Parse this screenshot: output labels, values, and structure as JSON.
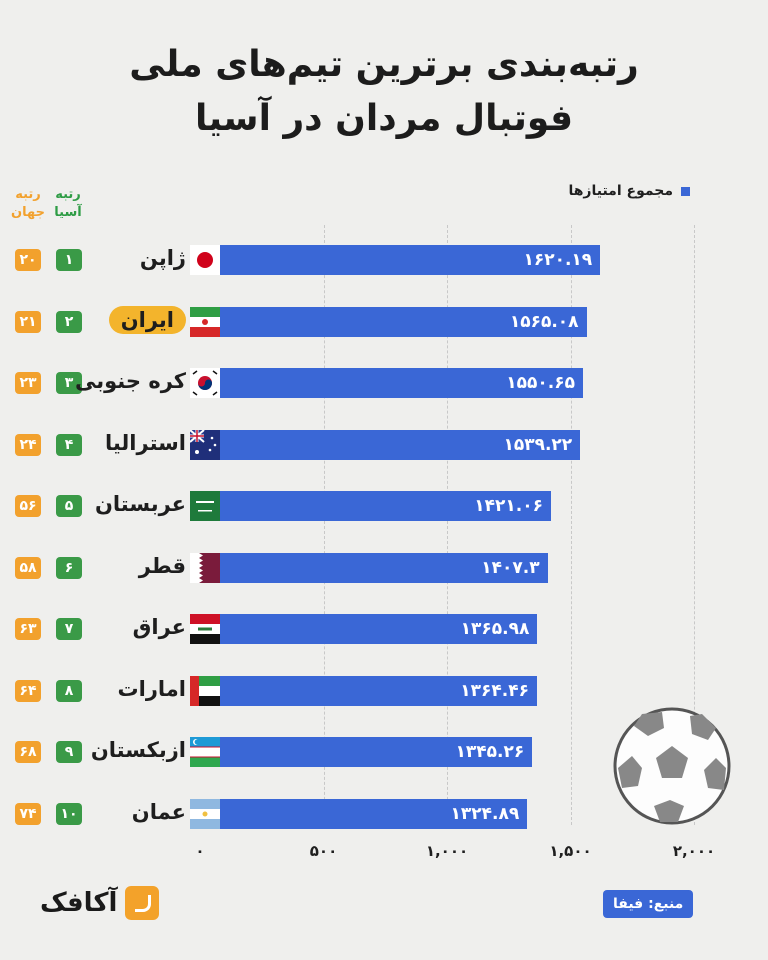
{
  "title_line1": "رتبه‌بندی برترین تیم‌های ملی",
  "title_line2": "فوتبال مردان در آسیا",
  "legend_label": "مجموع امتیازها",
  "col_world_rank": "رتبه جهان",
  "col_asia_rank": "رتبه آسیا",
  "source_label": "منبع: فیفا",
  "brand_name": "آکافک",
  "colors": {
    "bar": "#3a67d6",
    "world_badge": "#f2a12d",
    "asia_badge": "#3a9a47",
    "highlight": "#f3b42c"
  },
  "chart_data": {
    "type": "bar",
    "orientation": "horizontal",
    "title": "رتبه‌بندی برترین تیم‌های ملی فوتبال مردان در آسیا",
    "xlim": [
      0,
      2000
    ],
    "x_ticks": [
      "۰",
      "۵۰۰",
      "۱,۰۰۰",
      "۱,۵۰۰",
      "۲,۰۰۰"
    ],
    "x_tick_values": [
      0,
      500,
      1000,
      1500,
      2000
    ],
    "grid": true,
    "legend_position": "top-right",
    "series_name": "مجموع امتیازها",
    "rows": [
      {
        "country": "ژاپن",
        "flag": "japan",
        "value": 1620.19,
        "label": "۱۶۲۰.۱۹",
        "asia_rank": "۱",
        "world_rank": "۲۰"
      },
      {
        "country": "ایران",
        "flag": "iran",
        "value": 1565.08,
        "label": "۱۵۶۵.۰۸",
        "asia_rank": "۲",
        "world_rank": "۲۱",
        "highlight": true
      },
      {
        "country": "کره جنوبی",
        "flag": "south-korea",
        "value": 1550.65,
        "label": "۱۵۵۰.۶۵",
        "asia_rank": "۳",
        "world_rank": "۲۳"
      },
      {
        "country": "استرالیا",
        "flag": "australia",
        "value": 1539.22,
        "label": "۱۵۳۹.۲۲",
        "asia_rank": "۴",
        "world_rank": "۲۴"
      },
      {
        "country": "عربستان",
        "flag": "saudi-arabia",
        "value": 1421.06,
        "label": "۱۴۲۱.۰۶",
        "asia_rank": "۵",
        "world_rank": "۵۶"
      },
      {
        "country": "قطر",
        "flag": "qatar",
        "value": 1407.3,
        "label": "۱۴۰۷.۳",
        "asia_rank": "۶",
        "world_rank": "۵۸"
      },
      {
        "country": "عراق",
        "flag": "iraq",
        "value": 1365.98,
        "label": "۱۳۶۵.۹۸",
        "asia_rank": "۷",
        "world_rank": "۶۳"
      },
      {
        "country": "امارات",
        "flag": "uae",
        "value": 1364.46,
        "label": "۱۳۶۴.۴۶",
        "asia_rank": "۸",
        "world_rank": "۶۴"
      },
      {
        "country": "ازبکستان",
        "flag": "uzbekistan",
        "value": 1345.26,
        "label": "۱۳۴۵.۲۶",
        "asia_rank": "۹",
        "world_rank": "۶۸"
      },
      {
        "country": "عمان",
        "flag": "oman",
        "value": 1324.89,
        "label": "۱۳۲۴.۸۹",
        "asia_rank": "۱۰",
        "world_rank": "۷۴"
      }
    ]
  }
}
